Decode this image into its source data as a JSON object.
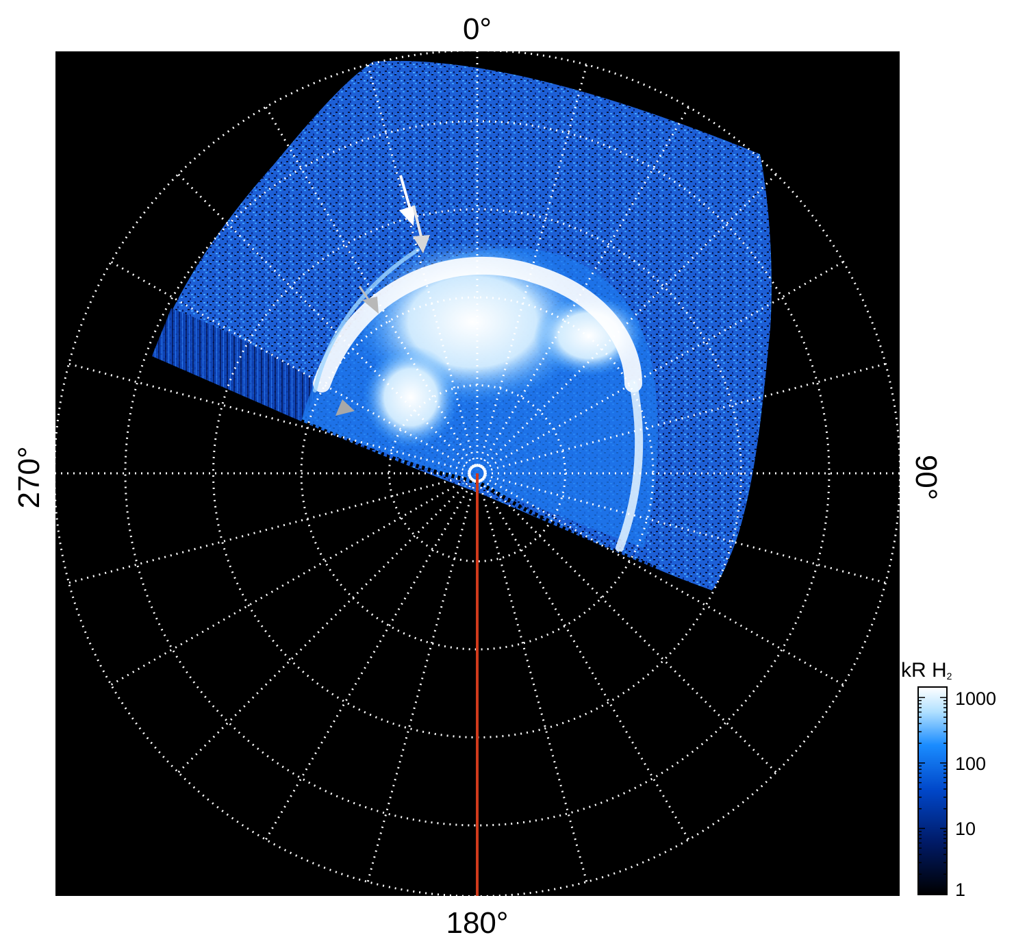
{
  "labels": {
    "top": "0°",
    "bottom": "180°",
    "left": "270°",
    "right": "90°"
  },
  "colorbar": {
    "title_main": "kR H",
    "title_sub": "2",
    "ticks": [
      "1000",
      "100",
      "10",
      "1"
    ],
    "colors": [
      "#000000",
      "#001a66",
      "#0046c8",
      "#1a8cff",
      "#b0e0ff",
      "#ffffff"
    ]
  },
  "image": {
    "background": "#000000",
    "grid_color": "#ffffff",
    "meridian_color": "#d03a1c",
    "aurora_colors": [
      "#0a2a8a",
      "#1a66e0",
      "#3aa0ff",
      "#bfe6ff",
      "#ffffff"
    ],
    "arrow_color_light": "#ffffff",
    "arrow_color_grey": "#b8b8b8"
  }
}
